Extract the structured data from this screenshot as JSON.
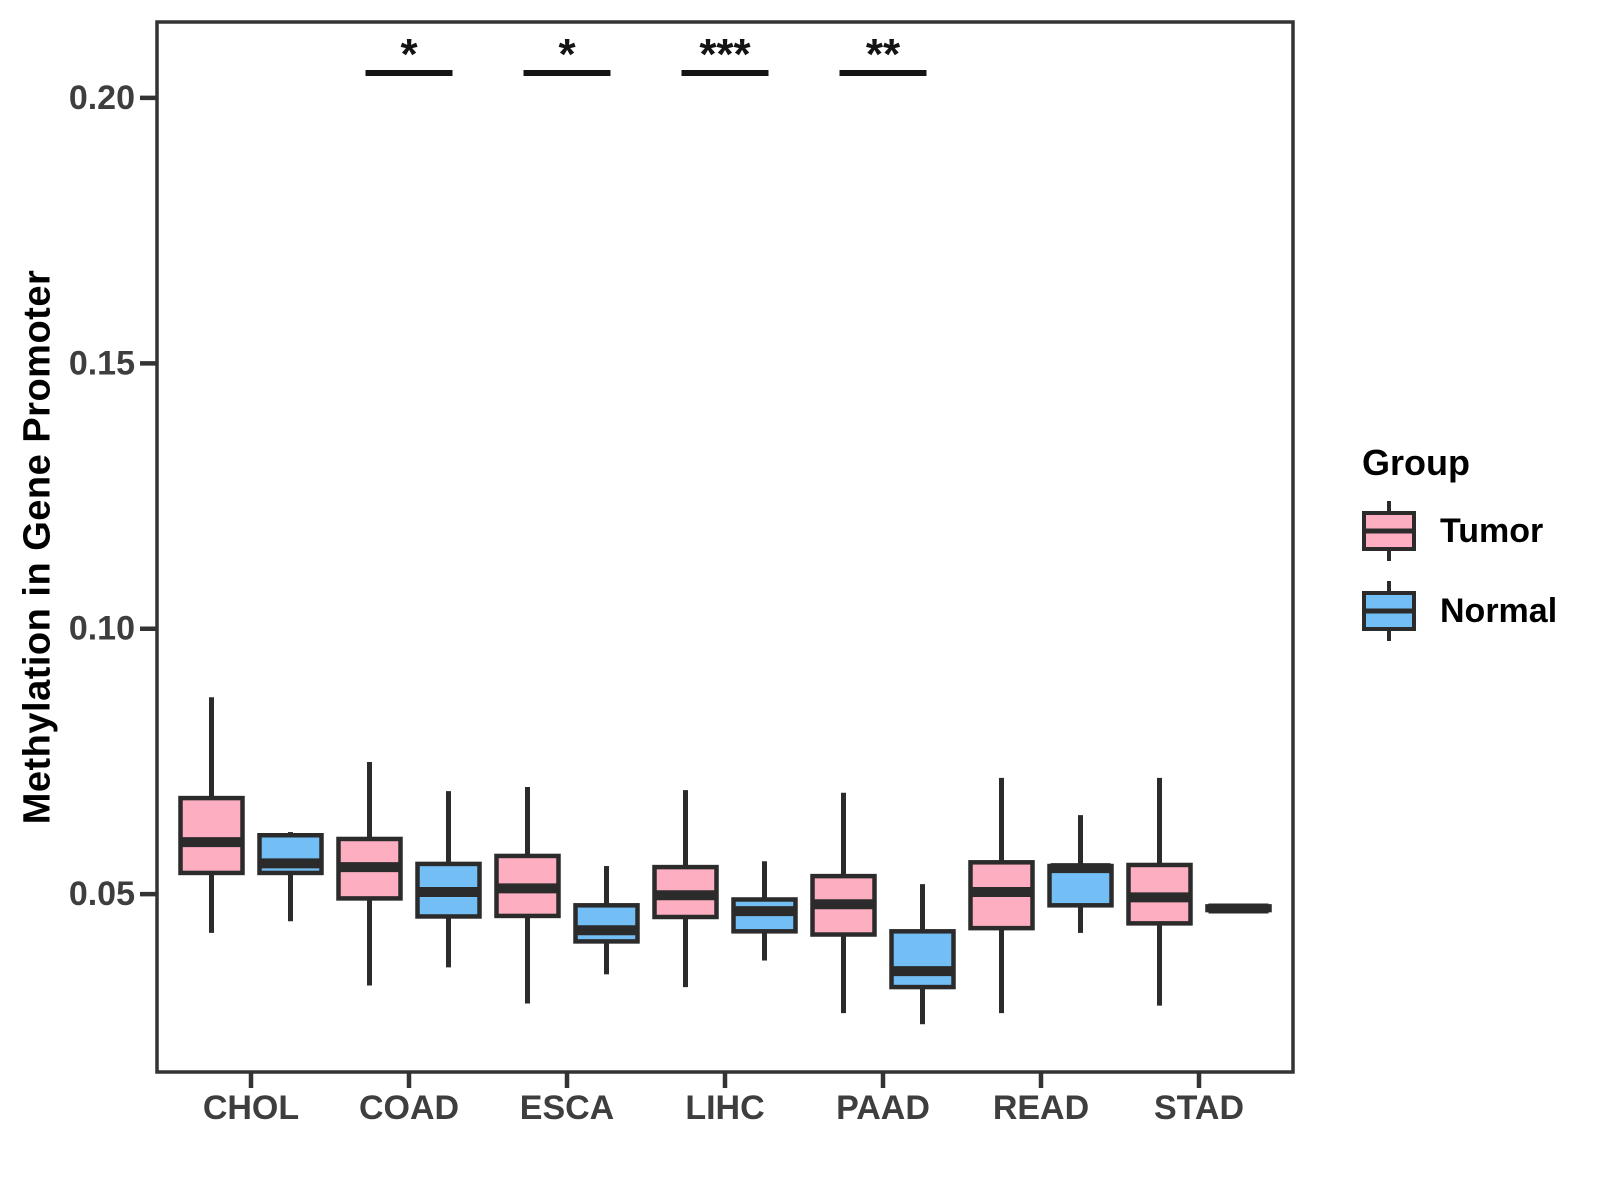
{
  "figure": {
    "background": "#FFFFFF"
  },
  "axes": {
    "y_title": "Methylation in Gene Promoter",
    "x_title": ""
  },
  "legend": {
    "title": "Group",
    "items": [
      {
        "label": "Tumor",
        "color": "#FDAFC1"
      },
      {
        "label": "Normal",
        "color": "#73BFF5"
      }
    ]
  },
  "colors": {
    "tumor": "#FDAFC1",
    "normal": "#73BFF5",
    "line": "#2B2B2B",
    "axis_text": "#3E3E3E",
    "panel_border": "#333333",
    "significance": "#141414"
  },
  "chart_data": {
    "type": "boxplot",
    "title": "",
    "ylabel": "Methylation in Gene Promoter",
    "xlabel": "",
    "categories": [
      "CHOL",
      "COAD",
      "ESCA",
      "LIHC",
      "PAAD",
      "READ",
      "STAD"
    ],
    "y_ticks": [
      {
        "v": 0.05,
        "label": "0.05"
      },
      {
        "v": 0.1,
        "label": "0.10"
      },
      {
        "v": 0.15,
        "label": "0.15"
      },
      {
        "v": 0.2,
        "label": "0.20"
      }
    ],
    "ylim": [
      0.0165,
      0.2143
    ],
    "grid": false,
    "legend_position": "right",
    "series": [
      {
        "name": "Tumor",
        "color": "#FDAFC1",
        "boxes": [
          {
            "category": "CHOL",
            "low": 0.0427,
            "q1": 0.054,
            "median": 0.0598,
            "q3": 0.0681,
            "high": 0.0871
          },
          {
            "category": "COAD",
            "low": 0.0328,
            "q1": 0.0492,
            "median": 0.0551,
            "q3": 0.0604,
            "high": 0.0749
          },
          {
            "category": "ESCA",
            "low": 0.0294,
            "q1": 0.0459,
            "median": 0.0511,
            "q3": 0.0572,
            "high": 0.0702
          },
          {
            "category": "LIHC",
            "low": 0.0325,
            "q1": 0.0457,
            "median": 0.0498,
            "q3": 0.0551,
            "high": 0.0696
          },
          {
            "category": "PAAD",
            "low": 0.0276,
            "q1": 0.0424,
            "median": 0.0481,
            "q3": 0.0534,
            "high": 0.0691
          },
          {
            "category": "READ",
            "low": 0.0276,
            "q1": 0.0436,
            "median": 0.0504,
            "q3": 0.056,
            "high": 0.0719
          },
          {
            "category": "STAD",
            "low": 0.029,
            "q1": 0.0445,
            "median": 0.0494,
            "q3": 0.0555,
            "high": 0.0719
          }
        ]
      },
      {
        "name": "Normal",
        "color": "#73BFF5",
        "boxes": [
          {
            "category": "CHOL",
            "low": 0.0449,
            "q1": 0.054,
            "median": 0.0558,
            "q3": 0.0611,
            "high": 0.0617
          },
          {
            "category": "COAD",
            "low": 0.0362,
            "q1": 0.0458,
            "median": 0.0504,
            "q3": 0.0557,
            "high": 0.0694
          },
          {
            "category": "ESCA",
            "low": 0.0349,
            "q1": 0.0411,
            "median": 0.0432,
            "q3": 0.0479,
            "high": 0.0553
          },
          {
            "category": "LIHC",
            "low": 0.0375,
            "q1": 0.043,
            "median": 0.0468,
            "q3": 0.049,
            "high": 0.0562
          },
          {
            "category": "PAAD",
            "low": 0.0255,
            "q1": 0.0325,
            "median": 0.0355,
            "q3": 0.043,
            "high": 0.0519
          },
          {
            "category": "READ",
            "low": 0.0427,
            "q1": 0.0479,
            "median": 0.0549,
            "q3": 0.0553,
            "high": 0.0649
          },
          {
            "category": "STAD",
            "low": 0.0465,
            "q1": 0.047,
            "median": 0.0473,
            "q3": 0.0477,
            "high": 0.0482
          }
        ]
      }
    ],
    "significance": [
      {
        "category": "COAD",
        "label": "*"
      },
      {
        "category": "ESCA",
        "label": "*"
      },
      {
        "category": "LIHC",
        "label": "***"
      },
      {
        "category": "PAAD",
        "label": "**"
      }
    ]
  }
}
